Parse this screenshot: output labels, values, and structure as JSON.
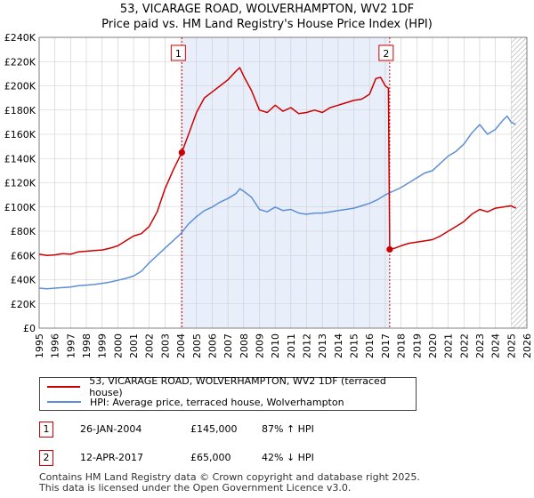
{
  "chart_data": {
    "type": "line",
    "title": "53, VICARAGE ROAD, WOLVERHAMPTON, WV2 1DF",
    "subtitle": "Price paid vs. HM Land Registry's House Price Index (HPI)",
    "xlim": [
      1995,
      2026
    ],
    "ylim": [
      0,
      240000
    ],
    "x_ticks": [
      1995,
      1996,
      1997,
      1998,
      1999,
      2000,
      2001,
      2002,
      2003,
      2004,
      2005,
      2006,
      2007,
      2008,
      2009,
      2010,
      2011,
      2012,
      2013,
      2014,
      2015,
      2016,
      2017,
      2018,
      2019,
      2020,
      2021,
      2022,
      2023,
      2024,
      2025,
      2026
    ],
    "y_ticks": [
      {
        "value": 0,
        "label": "£0"
      },
      {
        "value": 20000,
        "label": "£20K"
      },
      {
        "value": 40000,
        "label": "£40K"
      },
      {
        "value": 60000,
        "label": "£60K"
      },
      {
        "value": 80000,
        "label": "£80K"
      },
      {
        "value": 100000,
        "label": "£100K"
      },
      {
        "value": 120000,
        "label": "£120K"
      },
      {
        "value": 140000,
        "label": "£140K"
      },
      {
        "value": 160000,
        "label": "£160K"
      },
      {
        "value": 180000,
        "label": "£180K"
      },
      {
        "value": 200000,
        "label": "£200K"
      },
      {
        "value": 220000,
        "label": "£220K"
      },
      {
        "value": 240000,
        "label": "£240K"
      }
    ],
    "grid": true,
    "series": [
      {
        "name": "53, VICARAGE ROAD, WOLVERHAMPTON, WV2 1DF (terraced house)",
        "color": "#cc0000",
        "points": [
          [
            1995.0,
            61000
          ],
          [
            1995.5,
            60000
          ],
          [
            1996.0,
            60500
          ],
          [
            1996.5,
            61500
          ],
          [
            1997.0,
            61000
          ],
          [
            1997.5,
            63000
          ],
          [
            1998.0,
            63500
          ],
          [
            1998.5,
            64000
          ],
          [
            1999.0,
            64500
          ],
          [
            1999.5,
            66000
          ],
          [
            2000.0,
            68000
          ],
          [
            2000.5,
            72000
          ],
          [
            2001.0,
            76000
          ],
          [
            2001.5,
            78000
          ],
          [
            2002.0,
            84000
          ],
          [
            2002.5,
            96000
          ],
          [
            2003.0,
            115000
          ],
          [
            2003.5,
            130000
          ],
          [
            2004.07,
            145000
          ],
          [
            2004.5,
            160000
          ],
          [
            2005.0,
            178000
          ],
          [
            2005.5,
            190000
          ],
          [
            2006.0,
            195000
          ],
          [
            2006.5,
            200000
          ],
          [
            2007.0,
            205000
          ],
          [
            2007.5,
            212000
          ],
          [
            2007.75,
            215000
          ],
          [
            2008.0,
            208000
          ],
          [
            2008.5,
            196000
          ],
          [
            2009.0,
            180000
          ],
          [
            2009.5,
            178000
          ],
          [
            2010.0,
            184000
          ],
          [
            2010.5,
            179000
          ],
          [
            2011.0,
            182000
          ],
          [
            2011.5,
            177000
          ],
          [
            2012.0,
            178000
          ],
          [
            2012.5,
            180000
          ],
          [
            2013.0,
            178000
          ],
          [
            2013.5,
            182000
          ],
          [
            2014.0,
            184000
          ],
          [
            2014.5,
            186000
          ],
          [
            2015.0,
            188000
          ],
          [
            2015.5,
            189000
          ],
          [
            2016.0,
            193000
          ],
          [
            2016.4,
            206000
          ],
          [
            2016.7,
            207000
          ],
          [
            2017.0,
            200000
          ],
          [
            2017.2,
            198000
          ],
          [
            2017.28,
            65000
          ],
          [
            2017.6,
            66000
          ],
          [
            2018.0,
            68000
          ],
          [
            2018.5,
            70000
          ],
          [
            2019.0,
            71000
          ],
          [
            2019.5,
            72000
          ],
          [
            2020.0,
            73000
          ],
          [
            2020.5,
            76000
          ],
          [
            2021.0,
            80000
          ],
          [
            2021.5,
            84000
          ],
          [
            2022.0,
            88000
          ],
          [
            2022.5,
            94000
          ],
          [
            2023.0,
            98000
          ],
          [
            2023.5,
            96000
          ],
          [
            2024.0,
            99000
          ],
          [
            2024.5,
            100000
          ],
          [
            2025.0,
            101000
          ],
          [
            2025.3,
            99000
          ]
        ]
      },
      {
        "name": "HPI: Average price, terraced house, Wolverhampton",
        "color": "#5b8fd6",
        "points": [
          [
            1995.0,
            33000
          ],
          [
            1995.5,
            32500
          ],
          [
            1996.0,
            33000
          ],
          [
            1996.5,
            33500
          ],
          [
            1997.0,
            34000
          ],
          [
            1997.5,
            35000
          ],
          [
            1998.0,
            35500
          ],
          [
            1998.5,
            36000
          ],
          [
            1999.0,
            37000
          ],
          [
            1999.5,
            38000
          ],
          [
            2000.0,
            39500
          ],
          [
            2000.5,
            41000
          ],
          [
            2001.0,
            43000
          ],
          [
            2001.5,
            47000
          ],
          [
            2002.0,
            54000
          ],
          [
            2002.5,
            60000
          ],
          [
            2003.0,
            66000
          ],
          [
            2003.5,
            72000
          ],
          [
            2004.0,
            78000
          ],
          [
            2004.5,
            86000
          ],
          [
            2005.0,
            92000
          ],
          [
            2005.5,
            97000
          ],
          [
            2006.0,
            100000
          ],
          [
            2006.5,
            104000
          ],
          [
            2007.0,
            107000
          ],
          [
            2007.5,
            111000
          ],
          [
            2007.75,
            115000
          ],
          [
            2008.0,
            113000
          ],
          [
            2008.5,
            108000
          ],
          [
            2009.0,
            98000
          ],
          [
            2009.5,
            96000
          ],
          [
            2010.0,
            100000
          ],
          [
            2010.5,
            97000
          ],
          [
            2011.0,
            98000
          ],
          [
            2011.5,
            95000
          ],
          [
            2012.0,
            94000
          ],
          [
            2012.5,
            95000
          ],
          [
            2013.0,
            95000
          ],
          [
            2013.5,
            96000
          ],
          [
            2014.0,
            97000
          ],
          [
            2014.5,
            98000
          ],
          [
            2015.0,
            99000
          ],
          [
            2015.5,
            101000
          ],
          [
            2016.0,
            103000
          ],
          [
            2016.5,
            106000
          ],
          [
            2017.0,
            110000
          ],
          [
            2017.5,
            113000
          ],
          [
            2018.0,
            116000
          ],
          [
            2018.5,
            120000
          ],
          [
            2019.0,
            124000
          ],
          [
            2019.5,
            128000
          ],
          [
            2020.0,
            130000
          ],
          [
            2020.5,
            136000
          ],
          [
            2021.0,
            142000
          ],
          [
            2021.5,
            146000
          ],
          [
            2022.0,
            152000
          ],
          [
            2022.5,
            161000
          ],
          [
            2023.0,
            168000
          ],
          [
            2023.5,
            160000
          ],
          [
            2024.0,
            164000
          ],
          [
            2024.5,
            172000
          ],
          [
            2024.75,
            175000
          ],
          [
            2025.0,
            170000
          ],
          [
            2025.3,
            168000
          ]
        ]
      }
    ],
    "transactions": [
      {
        "num": "1",
        "x": 2004.07,
        "price_value": 145000,
        "date": "26-JAN-2004",
        "price": "£145,000",
        "hpi": "87% ↑ HPI"
      },
      {
        "num": "2",
        "x": 2017.28,
        "price_value": 65000,
        "date": "12-APR-2017",
        "price": "£65,000",
        "hpi": "42% ↓ HPI"
      }
    ],
    "shaded_range": [
      2004.07,
      2017.28
    ],
    "hatched_from": 2025.0
  },
  "legend": {
    "property_label": "53, VICARAGE ROAD, WOLVERHAMPTON, WV2 1DF (terraced house)",
    "hpi_label": "HPI: Average price, terraced house, Wolverhampton"
  },
  "footer": {
    "line1": "Contains HM Land Registry data © Crown copyright and database right 2025.",
    "line2": "This data is licensed under the Open Government Licence v3.0."
  },
  "colors": {
    "property": "#cc0000",
    "hpi": "#5b8fd6",
    "shade": "#e8eefa",
    "grid": "#cccccc"
  }
}
